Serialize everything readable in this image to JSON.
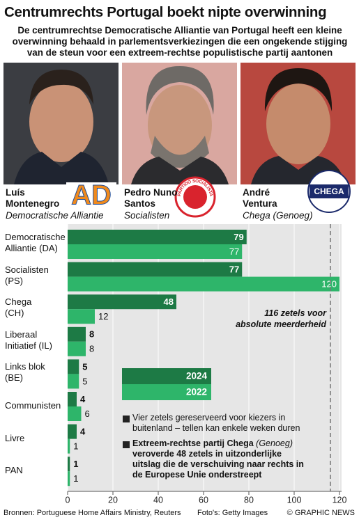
{
  "header": {
    "title": "Centrumrechts Portugal boekt nipte overwinning",
    "subtitle": "De centrumrechtse Democratische Alliantie van Portugal heeft een kleine overwinning behaald in parlementsverkiezingen die een ongekende stijging van de steun voor een extreem-rechtse populistische partij aantonen"
  },
  "candidates": [
    {
      "name": "Luís Montenegro",
      "party": "Democratische Alliantie"
    },
    {
      "name": "Pedro Nuno Santos",
      "party": "Socialisten"
    },
    {
      "name": "André Ventura",
      "party": "Chega (Genoeg)"
    }
  ],
  "logos": [
    "AD",
    "PARTIDO SOCIALISTA",
    "CHEGA"
  ],
  "chart_data": {
    "type": "bar",
    "orientation": "horizontal",
    "categories": [
      "Democratische\nAlliantie (DA)",
      "Socialisten\n(PS)",
      "Chega\n(CH)",
      "Liberaal\nInitiatief (IL)",
      "Links blok\n(BE)",
      "Communisten",
      "Livre",
      "PAN"
    ],
    "series": [
      {
        "name": "2024",
        "color": "#1d7a45",
        "values": [
          79,
          77,
          48,
          8,
          5,
          4,
          4,
          1
        ]
      },
      {
        "name": "2022",
        "color": "#2eb56a",
        "values": [
          77,
          120,
          12,
          8,
          5,
          6,
          1,
          1
        ]
      }
    ],
    "xlim": [
      0,
      120
    ],
    "xticks": [
      0,
      20,
      40,
      60,
      80,
      100,
      120
    ],
    "majority": {
      "value": 116,
      "label": "116 zetels voor\nabsolute meerderheid"
    },
    "notes": [
      {
        "text": "Vier zetels gereserveerd voor kiezers in buitenland – tellen kan enkele weken duren"
      },
      {
        "lead": "Extreem-rechtse partij Chega",
        "italic": "(Genoeg)",
        "rest": "veroverde 48 zetels in uitzonderlijke uitslag die de verschuiving naar rechts in de Europese Unie onderstreept"
      }
    ]
  },
  "footer": {
    "sources": "Bronnen: Portuguese Home Affairs Ministry, Reuters",
    "photos": "Foto's: Getty Images",
    "copyright": "© GRAPHIC NEWS"
  }
}
